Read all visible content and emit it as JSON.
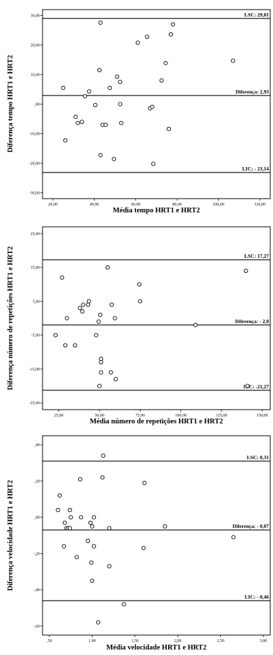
{
  "chart_data": [
    {
      "type": "scatter",
      "xlabel": "Média tempo HRT1 e HRT2",
      "ylabel": "Diferença tempo HRT1 e HRT2",
      "xlim": [
        15,
        125
      ],
      "ylim": [
        -32,
        32
      ],
      "x_ticks": [
        20,
        40,
        60,
        80,
        100,
        120
      ],
      "x_tick_labels": [
        "20,00",
        "40,00",
        "60,00",
        "80,00",
        "100,00",
        "120,00"
      ],
      "y_ticks": [
        -30,
        -20,
        -10,
        0,
        10,
        20,
        30
      ],
      "y_tick_labels": [
        "-30,00",
        "-20,00",
        "-10,00",
        ",00",
        "10,00",
        "20,00",
        "30,00"
      ],
      "reference_lines": [
        {
          "value": 29.01,
          "label": "LSC: 29,01"
        },
        {
          "value": 2.93,
          "label": "Diferença: 2,93"
        },
        {
          "value": -23.14,
          "label": "LIC: -  23,14"
        }
      ],
      "points": [
        {
          "x": 25,
          "y": 5.5
        },
        {
          "x": 26,
          "y": -12.3
        },
        {
          "x": 31,
          "y": -4.3
        },
        {
          "x": 32,
          "y": -6.4
        },
        {
          "x": 34,
          "y": -6.0
        },
        {
          "x": 35.5,
          "y": 2.7
        },
        {
          "x": 37.5,
          "y": 4.3
        },
        {
          "x": 40.5,
          "y": -0.3
        },
        {
          "x": 42.5,
          "y": 11.5
        },
        {
          "x": 43,
          "y": 27.6
        },
        {
          "x": 43,
          "y": -17.3
        },
        {
          "x": 44,
          "y": -7.0
        },
        {
          "x": 45.5,
          "y": -7.0
        },
        {
          "x": 47.5,
          "y": 5.5
        },
        {
          "x": 49.5,
          "y": -18.6
        },
        {
          "x": 51,
          "y": 9.3
        },
        {
          "x": 52.5,
          "y": 7.5
        },
        {
          "x": 52.5,
          "y": 0.0
        },
        {
          "x": 53,
          "y": -6.4
        },
        {
          "x": 61,
          "y": 20.8
        },
        {
          "x": 65.5,
          "y": 22.8
        },
        {
          "x": 67,
          "y": -1.4
        },
        {
          "x": 68,
          "y": -0.9
        },
        {
          "x": 68.5,
          "y": -20.2
        },
        {
          "x": 72.5,
          "y": 8.0
        },
        {
          "x": 74.5,
          "y": 13.9
        },
        {
          "x": 76,
          "y": -8.4
        },
        {
          "x": 77,
          "y": 23.6
        },
        {
          "x": 78,
          "y": 27.0
        },
        {
          "x": 107,
          "y": 14.7
        }
      ]
    },
    {
      "type": "scatter",
      "xlabel": "Média número de repetições HRT1 e HRT2",
      "ylabel": "Diferença número de repetições HRT1 e HRT2",
      "xlim": [
        15,
        155
      ],
      "ylim": [
        -27,
        27
      ],
      "x_ticks": [
        25,
        50,
        75,
        100,
        125,
        150
      ],
      "x_tick_labels": [
        "25,00",
        "50,00",
        "75,00",
        "100,00",
        "125,00",
        "150,00"
      ],
      "y_ticks": [
        -25,
        -15,
        -5,
        5,
        15,
        25
      ],
      "y_tick_labels": [
        "-25,00",
        "-15,00",
        "-5,00",
        "5,00",
        "15,00",
        "25,00"
      ],
      "reference_lines": [
        {
          "value": 17.27,
          "label": "LSC: 17,27"
        },
        {
          "value": -2.0,
          "label": "Diferença: - 2,0"
        },
        {
          "value": -21.27,
          "label": "LIC: -21,27"
        }
      ],
      "points": [
        {
          "x": 23,
          "y": -5.0
        },
        {
          "x": 27,
          "y": 12.0
        },
        {
          "x": 29,
          "y": -8.0
        },
        {
          "x": 30,
          "y": 0.0
        },
        {
          "x": 35,
          "y": -8.0
        },
        {
          "x": 38,
          "y": 3.0
        },
        {
          "x": 39.5,
          "y": 2.0
        },
        {
          "x": 40,
          "y": 4.0
        },
        {
          "x": 43,
          "y": 4.0
        },
        {
          "x": 43.5,
          "y": 5.0
        },
        {
          "x": 48,
          "y": -5.0
        },
        {
          "x": 49.5,
          "y": -1.0
        },
        {
          "x": 50,
          "y": -20.0
        },
        {
          "x": 50.5,
          "y": 1.0
        },
        {
          "x": 51,
          "y": -12.0
        },
        {
          "x": 51,
          "y": -13.0
        },
        {
          "x": 51,
          "y": -16.0
        },
        {
          "x": 55,
          "y": 15.0
        },
        {
          "x": 57,
          "y": -16.0
        },
        {
          "x": 57.5,
          "y": 4.0
        },
        {
          "x": 59.5,
          "y": 0.0
        },
        {
          "x": 60,
          "y": -18.0
        },
        {
          "x": 74.5,
          "y": 10.0
        },
        {
          "x": 75,
          "y": 5.0
        },
        {
          "x": 109,
          "y": -2.0
        },
        {
          "x": 140,
          "y": 14.0
        },
        {
          "x": 141,
          "y": -20.0
        }
      ]
    },
    {
      "type": "scatter",
      "xlabel": "Média velocidade HRT1 e HRT2",
      "ylabel": "Diferença velocidade HRT1 e HRT2",
      "xlim": [
        0.42,
        3.08
      ],
      "ylim": [
        -0.65,
        0.45
      ],
      "x_ticks": [
        0.5,
        1.0,
        1.5,
        2.0,
        2.5,
        3.0
      ],
      "x_tick_labels": [
        ",50",
        "1,00",
        "1,50",
        "2,00",
        "2,50",
        "3,00"
      ],
      "y_ticks": [
        -0.6,
        -0.4,
        -0.2,
        0.0,
        0.2,
        0.4
      ],
      "y_tick_labels": [
        "-,60",
        "-,40",
        "-,20",
        ",00",
        ",20",
        ",40"
      ],
      "reference_lines": [
        {
          "value": 0.31,
          "label": "LSC: 0,31"
        },
        {
          "value": -0.07,
          "label": "Diferença: - 0,07"
        },
        {
          "value": -0.46,
          "label": "LIC: - 0,46"
        }
      ],
      "points": [
        {
          "x": 0.6,
          "y": 0.04
        },
        {
          "x": 0.62,
          "y": 0.12
        },
        {
          "x": 0.67,
          "y": -0.16
        },
        {
          "x": 0.68,
          "y": -0.03
        },
        {
          "x": 0.7,
          "y": -0.06
        },
        {
          "x": 0.72,
          "y": -0.06
        },
        {
          "x": 0.74,
          "y": -0.06
        },
        {
          "x": 0.74,
          "y": 0.04
        },
        {
          "x": 0.75,
          "y": 0.0
        },
        {
          "x": 0.82,
          "y": -0.22
        },
        {
          "x": 0.86,
          "y": 0.21
        },
        {
          "x": 0.87,
          "y": 0.0
        },
        {
          "x": 0.95,
          "y": -0.13
        },
        {
          "x": 0.98,
          "y": -0.03
        },
        {
          "x": 0.99,
          "y": -0.25
        },
        {
          "x": 1.0,
          "y": -0.35
        },
        {
          "x": 1.0,
          "y": -0.05
        },
        {
          "x": 1.02,
          "y": 0.0
        },
        {
          "x": 1.02,
          "y": -0.16
        },
        {
          "x": 1.07,
          "y": -0.58
        },
        {
          "x": 1.12,
          "y": 0.22
        },
        {
          "x": 1.13,
          "y": 0.34
        },
        {
          "x": 1.2,
          "y": -0.06
        },
        {
          "x": 1.2,
          "y": -0.27
        },
        {
          "x": 1.37,
          "y": -0.48
        },
        {
          "x": 1.6,
          "y": -0.17
        },
        {
          "x": 1.61,
          "y": 0.19
        },
        {
          "x": 1.85,
          "y": -0.05
        },
        {
          "x": 2.65,
          "y": -0.11
        }
      ]
    }
  ]
}
